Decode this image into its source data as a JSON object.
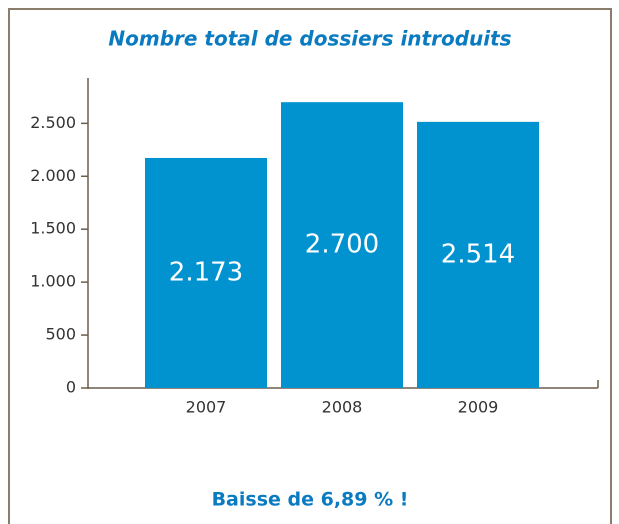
{
  "chart_data": {
    "type": "bar",
    "title": "Nombre total de dossiers introduits",
    "categories": [
      "2007",
      "2008",
      "2009"
    ],
    "values": [
      2173,
      2700,
      2514
    ],
    "value_labels": [
      "2.173",
      "2.700",
      "2.514"
    ],
    "color": "#0093d0",
    "ylim": [
      0,
      2900
    ],
    "yticks": [
      0,
      500,
      {
        "value": 1000,
        "label": "1.000"
      },
      {
        "value": 1500,
        "label": "1.500"
      },
      {
        "value": 2000,
        "label": "2.000"
      },
      {
        "value": 2500,
        "label": "2.500"
      }
    ],
    "annotation": "Baisse de 6,89 % !"
  }
}
